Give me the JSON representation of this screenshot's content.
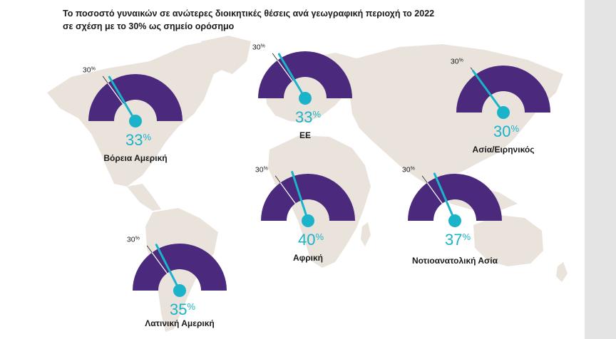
{
  "header": {
    "title_line1": "Το ποσοστό γυναικών σε ανώτερες διοικητικές θέσεις ανά γεωγραφική περιοχή το 2022",
    "title_line2": "σε σχέση με το 30% ως σημείο ορόσημο"
  },
  "colors": {
    "gauge_fill": "#4b2a7e",
    "needle": "#1bb3c9",
    "reference_line": "#ffffff",
    "map_land": "#e9e3dc"
  },
  "chart_data": {
    "type": "gauge",
    "scale": [
      0,
      100
    ],
    "reference": {
      "value": 30,
      "label": "30",
      "unit": "%"
    },
    "unit": "%",
    "regions": [
      {
        "name": "Βόρεια Αμερική",
        "value": 33
      },
      {
        "name": "ΕΕ",
        "value": 33
      },
      {
        "name": "Ασία/Ειρηνικός",
        "value": 30
      },
      {
        "name": "Αφρική",
        "value": 40
      },
      {
        "name": "Νοτιοανατολική Ασία",
        "value": 37
      },
      {
        "name": "Λατινική Αμερική",
        "value": 35
      }
    ]
  }
}
